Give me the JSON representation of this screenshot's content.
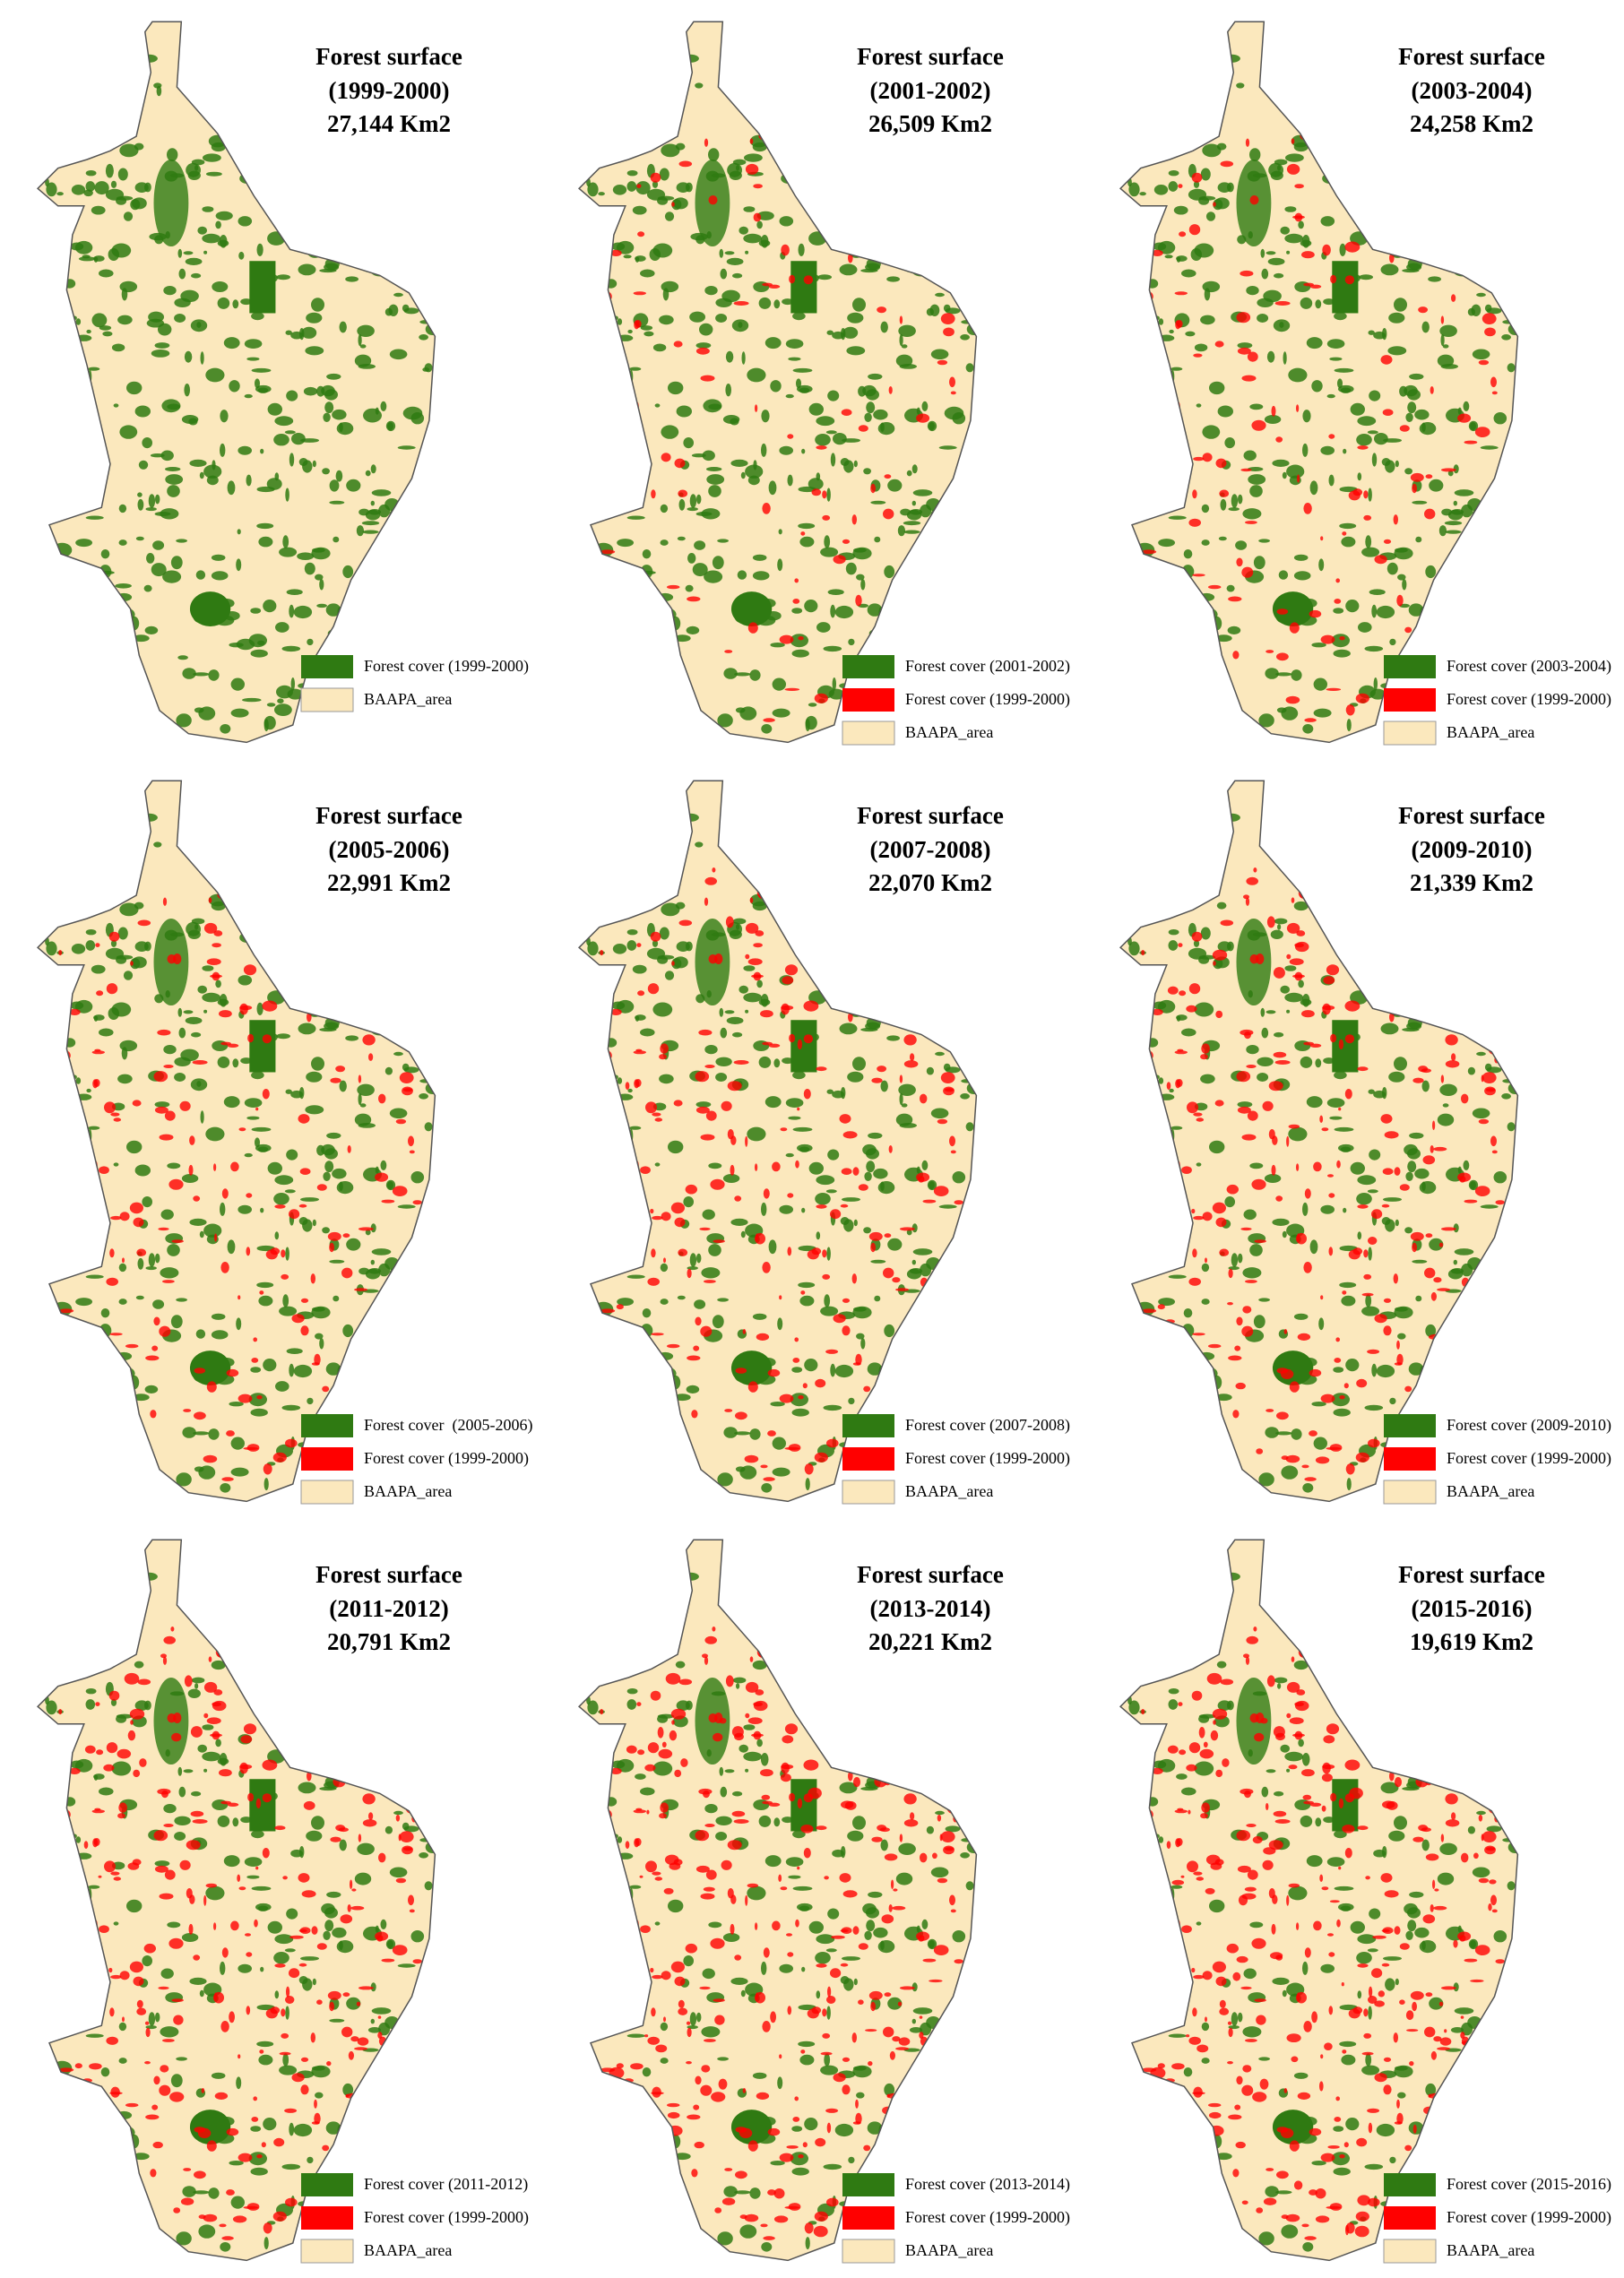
{
  "panels": [
    {
      "title": "Forest surface",
      "period": "(1999-2000)",
      "area": "27,144 Km2",
      "legend": [
        {
          "label": "Forest cover (1999-2000)",
          "color": "#2f7a12"
        },
        {
          "label": "BAAPA_area",
          "color": "#fbe8bd"
        }
      ]
    },
    {
      "title": "Forest surface",
      "period": "(2001-2002)",
      "area": "26,509 Km2",
      "legend": [
        {
          "label": "Forest cover (2001-2002)",
          "color": "#2f7a12"
        },
        {
          "label": "Forest cover (1999-2000)",
          "color": "#ff0000"
        },
        {
          "label": "BAAPA_area",
          "color": "#fbe8bd"
        }
      ]
    },
    {
      "title": "Forest surface",
      "period": "(2003-2004)",
      "area": "24,258 Km2",
      "legend": [
        {
          "label": "Forest cover (2003-2004)",
          "color": "#2f7a12"
        },
        {
          "label": "Forest cover (1999-2000)",
          "color": "#ff0000"
        },
        {
          "label": "BAAPA_area",
          "color": "#fbe8bd"
        }
      ]
    },
    {
      "title": "Forest surface",
      "period": "(2005-2006)",
      "area": "22,991 Km2",
      "legend": [
        {
          "label": "Forest cover  (2005-2006)",
          "color": "#2f7a12"
        },
        {
          "label": "Forest cover (1999-2000)",
          "color": "#ff0000"
        },
        {
          "label": "BAAPA_area",
          "color": "#fbe8bd"
        }
      ]
    },
    {
      "title": "Forest surface",
      "period": "(2007-2008)",
      "area": "22,070 Km2",
      "legend": [
        {
          "label": "Forest cover (2007-2008)",
          "color": "#2f7a12"
        },
        {
          "label": "Forest cover (1999-2000)",
          "color": "#ff0000"
        },
        {
          "label": "BAAPA_area",
          "color": "#fbe8bd"
        }
      ]
    },
    {
      "title": "Forest surface",
      "period": "(2009-2010)",
      "area": "21,339 Km2",
      "legend": [
        {
          "label": "Forest cover (2009-2010)",
          "color": "#2f7a12"
        },
        {
          "label": "Forest cover (1999-2000)",
          "color": "#ff0000"
        },
        {
          "label": "BAAPA_area",
          "color": "#fbe8bd"
        }
      ]
    },
    {
      "title": "Forest surface",
      "period": "(2011-2012)",
      "area": "20,791 Km2",
      "legend": [
        {
          "label": "Forest cover (2011-2012)",
          "color": "#2f7a12"
        },
        {
          "label": "Forest cover (1999-2000)",
          "color": "#ff0000"
        },
        {
          "label": "BAAPA_area",
          "color": "#fbe8bd"
        }
      ]
    },
    {
      "title": "Forest surface",
      "period": "(2013-2014)",
      "area": "20,221 Km2",
      "legend": [
        {
          "label": "Forest cover (2013-2014)",
          "color": "#2f7a12"
        },
        {
          "label": "Forest cover (1999-2000)",
          "color": "#ff0000"
        },
        {
          "label": "BAAPA_area",
          "color": "#fbe8bd"
        }
      ]
    },
    {
      "title": "Forest surface",
      "period": "(2015-2016)",
      "area": "19,619 Km2",
      "legend": [
        {
          "label": "Forest cover (2015-2016)",
          "color": "#2f7a12"
        },
        {
          "label": "Forest cover (1999-2000)",
          "color": "#ff0000"
        },
        {
          "label": "BAAPA_area",
          "color": "#fbe8bd"
        }
      ]
    }
  ]
}
